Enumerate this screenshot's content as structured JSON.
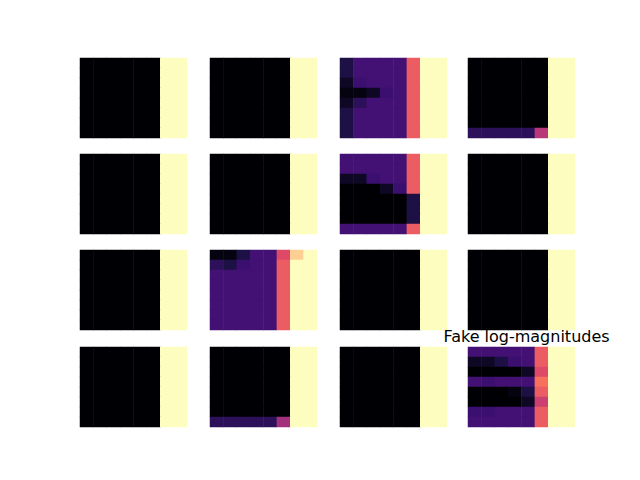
{
  "chart_data": {
    "type": "heatmap",
    "zlim": [
      0,
      1
    ],
    "tick_labels": false,
    "panels": [
      {
        "cells": [
          [
            0,
            0,
            0,
            0,
            0,
            0,
            1,
            1
          ],
          [
            0,
            0,
            0,
            0,
            0,
            0,
            1,
            1
          ],
          [
            0,
            0,
            0,
            0,
            0,
            0,
            1,
            1
          ],
          [
            0,
            0,
            0,
            0,
            0,
            0,
            1,
            1
          ],
          [
            0,
            0,
            0,
            0,
            0,
            0,
            1,
            1
          ],
          [
            0,
            0,
            0,
            0,
            0,
            0,
            1,
            1
          ],
          [
            0,
            0,
            0,
            0,
            0,
            0,
            1,
            1
          ],
          [
            0,
            0,
            0,
            0,
            0,
            0,
            1,
            1
          ]
        ]
      },
      {
        "cells": [
          [
            0,
            0,
            0,
            0,
            0,
            0,
            1,
            1
          ],
          [
            0,
            0,
            0,
            0,
            0,
            0,
            1,
            1
          ],
          [
            0,
            0,
            0,
            0,
            0,
            0,
            1,
            1
          ],
          [
            0,
            0,
            0,
            0,
            0,
            0,
            1,
            1
          ],
          [
            0,
            0,
            0,
            0,
            0,
            0,
            1,
            1
          ],
          [
            0,
            0,
            0,
            0,
            0,
            0,
            1,
            1
          ],
          [
            0,
            0,
            0,
            0,
            0,
            0,
            1,
            1
          ],
          [
            0,
            0,
            0,
            0,
            0,
            0,
            1,
            1
          ]
        ]
      },
      {
        "cells": [
          [
            0.1,
            0.22,
            0.22,
            0.22,
            0.22,
            0.65,
            1,
            1
          ],
          [
            0.1,
            0.22,
            0.22,
            0.22,
            0.22,
            0.65,
            1,
            1
          ],
          [
            0.05,
            0.2,
            0.22,
            0.22,
            0.22,
            0.65,
            1,
            1
          ],
          [
            0.02,
            0.02,
            0.05,
            0.2,
            0.22,
            0.65,
            1,
            1
          ],
          [
            0.05,
            0.15,
            0.22,
            0.22,
            0.22,
            0.65,
            1,
            1
          ],
          [
            0.1,
            0.22,
            0.22,
            0.22,
            0.22,
            0.65,
            1,
            1
          ],
          [
            0.1,
            0.22,
            0.22,
            0.22,
            0.22,
            0.65,
            1,
            1
          ],
          [
            0.1,
            0.22,
            0.22,
            0.22,
            0.22,
            0.65,
            1,
            1
          ]
        ]
      },
      {
        "cells": [
          [
            0,
            0,
            0,
            0,
            0,
            0,
            1,
            1
          ],
          [
            0,
            0,
            0,
            0,
            0,
            0,
            1,
            1
          ],
          [
            0,
            0,
            0,
            0,
            0,
            0,
            1,
            1
          ],
          [
            0,
            0,
            0,
            0,
            0,
            0,
            1,
            1
          ],
          [
            0,
            0,
            0,
            0,
            0,
            0,
            1,
            1
          ],
          [
            0,
            0,
            0,
            0,
            0,
            0,
            1,
            1
          ],
          [
            0,
            0,
            0,
            0,
            0,
            0,
            1,
            1
          ],
          [
            0.15,
            0.15,
            0.15,
            0.15,
            0.15,
            0.5,
            1,
            1
          ]
        ]
      },
      {
        "cells": [
          [
            0,
            0,
            0,
            0,
            0,
            0,
            1,
            1
          ],
          [
            0,
            0,
            0,
            0,
            0,
            0,
            1,
            1
          ],
          [
            0,
            0,
            0,
            0,
            0,
            0,
            1,
            1
          ],
          [
            0,
            0,
            0,
            0,
            0,
            0,
            1,
            1
          ],
          [
            0,
            0,
            0,
            0,
            0,
            0,
            1,
            1
          ],
          [
            0,
            0,
            0,
            0,
            0,
            0,
            1,
            1
          ],
          [
            0,
            0,
            0,
            0,
            0,
            0,
            1,
            1
          ],
          [
            0,
            0,
            0,
            0,
            0,
            0,
            1,
            1
          ]
        ]
      },
      {
        "cells": [
          [
            0,
            0,
            0,
            0,
            0,
            0,
            1,
            1
          ],
          [
            0,
            0,
            0,
            0,
            0,
            0,
            1,
            1
          ],
          [
            0,
            0,
            0,
            0,
            0,
            0,
            1,
            1
          ],
          [
            0,
            0,
            0,
            0,
            0,
            0,
            1,
            1
          ],
          [
            0,
            0,
            0,
            0,
            0,
            0,
            1,
            1
          ],
          [
            0,
            0,
            0,
            0,
            0,
            0,
            1,
            1
          ],
          [
            0,
            0,
            0,
            0,
            0,
            0,
            1,
            1
          ],
          [
            0,
            0,
            0,
            0,
            0,
            0,
            1,
            1
          ]
        ]
      },
      {
        "cells": [
          [
            0.22,
            0.22,
            0.22,
            0.22,
            0.22,
            0.65,
            1,
            1
          ],
          [
            0.22,
            0.22,
            0.22,
            0.22,
            0.22,
            0.65,
            1,
            1
          ],
          [
            0.05,
            0.05,
            0.2,
            0.22,
            0.22,
            0.65,
            1,
            1
          ],
          [
            0,
            0,
            0,
            0.05,
            0.2,
            0.65,
            1,
            1
          ],
          [
            0,
            0,
            0,
            0,
            0,
            0.1,
            1,
            1
          ],
          [
            0,
            0,
            0,
            0,
            0,
            0.1,
            1,
            1
          ],
          [
            0,
            0,
            0,
            0,
            0,
            0.1,
            1,
            1
          ],
          [
            0.22,
            0.22,
            0.22,
            0.22,
            0.22,
            0.65,
            1,
            1
          ]
        ]
      },
      {
        "cells": [
          [
            0,
            0,
            0,
            0,
            0,
            0,
            1,
            1
          ],
          [
            0,
            0,
            0,
            0,
            0,
            0,
            1,
            1
          ],
          [
            0,
            0,
            0,
            0,
            0,
            0,
            1,
            1
          ],
          [
            0,
            0,
            0,
            0,
            0,
            0,
            1,
            1
          ],
          [
            0,
            0,
            0,
            0,
            0,
            0,
            1,
            1
          ],
          [
            0,
            0,
            0,
            0,
            0,
            0,
            1,
            1
          ],
          [
            0,
            0,
            0,
            0,
            0,
            0,
            1,
            1
          ],
          [
            0,
            0,
            0,
            0,
            0,
            0,
            1,
            1
          ]
        ]
      },
      {
        "cells": [
          [
            0,
            0,
            0,
            0,
            0,
            0,
            1,
            1
          ],
          [
            0,
            0,
            0,
            0,
            0,
            0,
            1,
            1
          ],
          [
            0,
            0,
            0,
            0,
            0,
            0,
            1,
            1
          ],
          [
            0,
            0,
            0,
            0,
            0,
            0,
            1,
            1
          ],
          [
            0,
            0,
            0,
            0,
            0,
            0,
            1,
            1
          ],
          [
            0,
            0,
            0,
            0,
            0,
            0,
            1,
            1
          ],
          [
            0,
            0,
            0,
            0,
            0,
            0,
            1,
            1
          ],
          [
            0,
            0,
            0,
            0,
            0,
            0,
            1,
            1
          ]
        ]
      },
      {
        "cells": [
          [
            0.02,
            0.02,
            0.1,
            0.22,
            0.22,
            0.6,
            0.9,
            1
          ],
          [
            0.15,
            0.1,
            0.2,
            0.22,
            0.22,
            0.65,
            1,
            1
          ],
          [
            0.22,
            0.22,
            0.22,
            0.22,
            0.22,
            0.65,
            1,
            1
          ],
          [
            0.22,
            0.22,
            0.22,
            0.22,
            0.22,
            0.65,
            1,
            1
          ],
          [
            0.22,
            0.22,
            0.22,
            0.22,
            0.22,
            0.65,
            1,
            1
          ],
          [
            0.22,
            0.22,
            0.22,
            0.22,
            0.22,
            0.65,
            1,
            1
          ],
          [
            0.22,
            0.22,
            0.22,
            0.22,
            0.22,
            0.65,
            1,
            1
          ],
          [
            0.22,
            0.22,
            0.22,
            0.22,
            0.22,
            0.65,
            1,
            1
          ]
        ]
      },
      {
        "cells": [
          [
            0,
            0,
            0,
            0,
            0,
            0,
            1,
            1
          ],
          [
            0,
            0,
            0,
            0,
            0,
            0,
            1,
            1
          ],
          [
            0,
            0,
            0,
            0,
            0,
            0,
            1,
            1
          ],
          [
            0,
            0,
            0,
            0,
            0,
            0,
            1,
            1
          ],
          [
            0,
            0,
            0,
            0,
            0,
            0,
            1,
            1
          ],
          [
            0,
            0,
            0,
            0,
            0,
            0,
            1,
            1
          ],
          [
            0,
            0,
            0,
            0,
            0,
            0,
            1,
            1
          ],
          [
            0,
            0,
            0,
            0,
            0,
            0,
            1,
            1
          ]
        ]
      },
      {
        "cells": [
          [
            0,
            0,
            0,
            0,
            0,
            0,
            1,
            1
          ],
          [
            0,
            0,
            0,
            0,
            0,
            0,
            1,
            1
          ],
          [
            0,
            0,
            0,
            0,
            0,
            0,
            1,
            1
          ],
          [
            0,
            0,
            0,
            0,
            0,
            0,
            1,
            1
          ],
          [
            0,
            0,
            0,
            0,
            0,
            0,
            1,
            1
          ],
          [
            0,
            0,
            0,
            0,
            0,
            0,
            1,
            1
          ],
          [
            0,
            0,
            0,
            0,
            0,
            0,
            1,
            1
          ],
          [
            0,
            0,
            0,
            0,
            0,
            0,
            1,
            1
          ]
        ]
      },
      {
        "cells": [
          [
            0,
            0,
            0,
            0,
            0,
            0,
            1,
            1
          ],
          [
            0,
            0,
            0,
            0,
            0,
            0,
            1,
            1
          ],
          [
            0,
            0,
            0,
            0,
            0,
            0,
            1,
            1
          ],
          [
            0,
            0,
            0,
            0,
            0,
            0,
            1,
            1
          ],
          [
            0,
            0,
            0,
            0,
            0,
            0,
            1,
            1
          ],
          [
            0,
            0,
            0,
            0,
            0,
            0,
            1,
            1
          ],
          [
            0,
            0,
            0,
            0,
            0,
            0,
            1,
            1
          ],
          [
            0,
            0,
            0,
            0,
            0,
            0,
            1,
            1
          ]
        ]
      },
      {
        "cells": [
          [
            0,
            0,
            0,
            0,
            0,
            0,
            1,
            1
          ],
          [
            0,
            0,
            0,
            0,
            0,
            0,
            1,
            1
          ],
          [
            0,
            0,
            0,
            0,
            0,
            0,
            1,
            1
          ],
          [
            0,
            0,
            0,
            0,
            0,
            0,
            1,
            1
          ],
          [
            0,
            0,
            0,
            0,
            0,
            0,
            1,
            1
          ],
          [
            0,
            0,
            0,
            0,
            0,
            0,
            1,
            1
          ],
          [
            0,
            0,
            0,
            0,
            0,
            0,
            1,
            1
          ],
          [
            0.15,
            0.15,
            0.15,
            0.15,
            0.15,
            0.45,
            1,
            1
          ]
        ]
      },
      {
        "cells": [
          [
            0,
            0,
            0,
            0,
            0,
            0,
            1,
            1
          ],
          [
            0,
            0,
            0,
            0,
            0,
            0,
            1,
            1
          ],
          [
            0,
            0,
            0,
            0,
            0,
            0,
            1,
            1
          ],
          [
            0,
            0,
            0,
            0,
            0,
            0,
            1,
            1
          ],
          [
            0,
            0,
            0,
            0,
            0,
            0,
            1,
            1
          ],
          [
            0,
            0,
            0,
            0,
            0,
            0,
            1,
            1
          ],
          [
            0,
            0,
            0,
            0,
            0,
            0,
            1,
            1
          ],
          [
            0,
            0,
            0,
            0,
            0,
            0,
            1,
            1
          ]
        ]
      },
      {
        "title": "Fake log-magnitudes",
        "cells": [
          [
            0.22,
            0.22,
            0.22,
            0.22,
            0.22,
            0.65,
            1,
            1
          ],
          [
            0.05,
            0.05,
            0.1,
            0.2,
            0.22,
            0.65,
            1,
            1
          ],
          [
            0,
            0,
            0,
            0,
            0.05,
            0.6,
            1,
            1
          ],
          [
            0.22,
            0.2,
            0.22,
            0.22,
            0.22,
            0.7,
            1,
            1
          ],
          [
            0,
            0,
            0,
            0.02,
            0.1,
            0.65,
            1,
            1
          ],
          [
            0,
            0,
            0,
            0,
            0.05,
            0.55,
            1,
            1
          ],
          [
            0.2,
            0.2,
            0.22,
            0.22,
            0.22,
            0.65,
            1,
            1
          ],
          [
            0.22,
            0.22,
            0.22,
            0.22,
            0.22,
            0.65,
            1,
            1
          ]
        ]
      }
    ]
  }
}
